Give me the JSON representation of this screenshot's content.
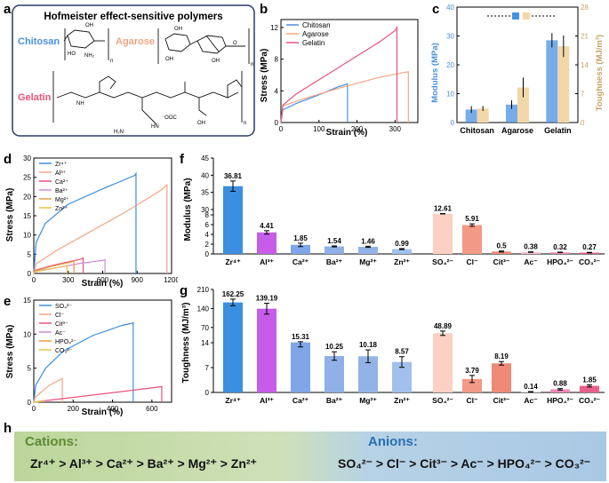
{
  "panel_letters": {
    "a": "a",
    "b": "b",
    "c": "c",
    "d": "d",
    "e": "e",
    "f": "f",
    "g": "g",
    "h": "h"
  },
  "colors": {
    "chitosan": "#4a90e2",
    "agarose": "#f4a582",
    "gelatin": "#e8537a",
    "zr": "#3b8fe0",
    "al": "#c65ce8",
    "ca": "#7fa6e8",
    "ba": "#8fb1e8",
    "mg": "#93b3e6",
    "zn": "#a2c0ec",
    "so4": "#fcd0c2",
    "cl": "#f29a86",
    "cit": "#ef8a78",
    "ac": "#f7c0d0",
    "hpo4": "#ee88b8",
    "co3": "#e8608a",
    "toughness": "#f2d7a8",
    "banner_left": "#bcd69a",
    "banner_right": "#a9c8e4",
    "cation_title": "#5e8a34",
    "anion_title": "#2a6fb4"
  },
  "panel_a": {
    "title": "Hofmeister effect-sensitive polymers",
    "chitosan": "Chitosan",
    "agarose": "Agarose",
    "gelatin": "Gelatin",
    "n": "n",
    "oh": "OH",
    "ho": "HO",
    "o": "O",
    "nh2": "NH₂",
    "nh": "NH",
    "hn": "HN",
    "h2n": "H₂N",
    "ooc": "⁻OOC"
  },
  "panel_h": {
    "cations_title": "Cations:",
    "anions_title": "Anions:",
    "cation_series": "Zr⁴⁺ > Al³⁺ > Ca²⁺ > Ba²⁺ > Mg²⁺ > Zn²⁺",
    "anion_series": "SO₄²⁻ > Cl⁻ > Cit³⁻ > Ac⁻ > HPO₄²⁻ > CO₃²⁻"
  },
  "chart_data": [
    {
      "id": "b",
      "type": "line",
      "xlabel": "Strain (%)",
      "ylabel": "Stress (MPa)",
      "xlim": [
        0,
        360
      ],
      "ylim": [
        0,
        13
      ],
      "xticks": [
        "0",
        "100",
        "200",
        "300"
      ],
      "yticks": [
        "0",
        "4",
        "8",
        "12"
      ],
      "legend_position": "top-left",
      "series": [
        {
          "name": "Chitosan",
          "color": "#4a90e2",
          "x": [
            0,
            5,
            40,
            100,
            150,
            170,
            175,
            175
          ],
          "y": [
            0,
            1.6,
            2.4,
            3.5,
            4.5,
            4.8,
            4.9,
            0
          ]
        },
        {
          "name": "Agarose",
          "color": "#f4a582",
          "x": [
            0,
            5,
            60,
            150,
            250,
            320,
            335,
            335
          ],
          "y": [
            0,
            2.1,
            3,
            4.3,
            5.6,
            6.3,
            6.4,
            0
          ]
        },
        {
          "name": "Gelatin",
          "color": "#e8537a",
          "x": [
            0,
            5,
            40,
            120,
            200,
            260,
            300,
            305,
            305
          ],
          "y": [
            0,
            2.2,
            3.6,
            6,
            8.4,
            10.2,
            11.6,
            12,
            0
          ]
        }
      ]
    },
    {
      "id": "c",
      "type": "bar",
      "categories": [
        "Chitosan",
        "Agarose",
        "Gelatin"
      ],
      "ylabel": "Modulus (MPa)",
      "y2label": "Toughness (MJ/m³)",
      "ylim": [
        0,
        40
      ],
      "y2lim": [
        0,
        28
      ],
      "yticks": [
        "0",
        "10",
        "20",
        "30",
        "40"
      ],
      "y2ticks": [
        "0",
        "7",
        "14",
        "21",
        "28"
      ],
      "series": [
        {
          "name": "Modulus",
          "axis": "left",
          "values": [
            4.5,
            6.2,
            28.5
          ],
          "errors": [
            1.2,
            1.5,
            2.5
          ]
        },
        {
          "name": "Toughness",
          "axis": "right",
          "values": [
            3.4,
            8.5,
            18.5
          ],
          "errors": [
            0.6,
            2.4,
            2.6
          ]
        }
      ]
    },
    {
      "id": "d",
      "type": "line",
      "xlabel": "Strain (%)",
      "ylabel": "Stress (MPa)",
      "xlim": [
        0,
        1200
      ],
      "ylim": [
        0,
        30
      ],
      "xticks": [
        "0",
        "300",
        "600",
        "900",
        "1200"
      ],
      "yticks": [
        "0",
        "5",
        "10",
        "15",
        "20",
        "25",
        "30"
      ],
      "legend_position": "top-left",
      "series": [
        {
          "name": "Zr⁴⁺",
          "color": "#3b8fe0",
          "x": [
            0,
            20,
            100,
            300,
            600,
            880,
            890,
            890
          ],
          "y": [
            0,
            8,
            13,
            18,
            22,
            25.5,
            26,
            0
          ]
        },
        {
          "name": "Al³⁺",
          "color": "#f4a582",
          "x": [
            0,
            20,
            200,
            500,
            800,
            1100,
            1160,
            1160
          ],
          "y": [
            0,
            2.5,
            6,
            11,
            16,
            21.5,
            23,
            0
          ]
        },
        {
          "name": "Ca²⁺",
          "color": "#e8537a",
          "x": [
            0,
            10,
            150,
            300,
            420,
            430,
            430
          ],
          "y": [
            0,
            0.8,
            2,
            3,
            3.8,
            4,
            0
          ]
        },
        {
          "name": "Ba²⁺",
          "color": "#d48bd8",
          "x": [
            0,
            10,
            200,
            400,
            600,
            620,
            620
          ],
          "y": [
            0,
            0.5,
            1.5,
            2.6,
            3.4,
            3.6,
            0
          ]
        },
        {
          "name": "Mg²⁺",
          "color": "#e8a046",
          "x": [
            0,
            10,
            150,
            330,
            350,
            350
          ],
          "y": [
            0,
            0.6,
            1.8,
            3,
            3.2,
            0
          ]
        },
        {
          "name": "Zn²⁺",
          "color": "#e8c24a",
          "x": [
            0,
            10,
            150,
            280,
            290,
            290
          ],
          "y": [
            0,
            0.4,
            1.2,
            2,
            2.1,
            0
          ]
        }
      ]
    },
    {
      "id": "e",
      "type": "line",
      "xlabel": "Strain (%)",
      "ylabel": "Stress (MPa)",
      "xlim": [
        0,
        700
      ],
      "ylim": [
        0,
        15
      ],
      "xticks": [
        "0",
        "200",
        "400",
        "600"
      ],
      "yticks": [
        "0",
        "5",
        "10",
        "15"
      ],
      "legend_position": "top-left",
      "series": [
        {
          "name": "SO₄²⁻",
          "color": "#3b8fe0",
          "x": [
            0,
            10,
            60,
            150,
            300,
            450,
            500,
            505,
            505
          ],
          "y": [
            0,
            2.5,
            5,
            7.5,
            9.8,
            11.3,
            11.6,
            11.7,
            0
          ]
        },
        {
          "name": "Cl⁻",
          "color": "#f4a582",
          "x": [
            0,
            10,
            80,
            140,
            145,
            145
          ],
          "y": [
            0,
            0.8,
            2.5,
            3.4,
            3.5,
            0
          ]
        },
        {
          "name": "Cit³⁻",
          "color": "#e8537a",
          "x": [
            0,
            20,
            200,
            400,
            600,
            650,
            650
          ],
          "y": [
            0,
            0.1,
            0.7,
            1.4,
            2.1,
            2.3,
            0
          ]
        },
        {
          "name": "Ac⁻",
          "color": "#d48bd8",
          "x": [
            0,
            30,
            60,
            60
          ],
          "y": [
            0,
            0.1,
            0.2,
            0
          ]
        },
        {
          "name": "HPO₄²⁻",
          "color": "#e8a046",
          "x": [
            0,
            30,
            50,
            50
          ],
          "y": [
            0,
            0.1,
            0.15,
            0
          ]
        },
        {
          "name": "CO₃²⁻",
          "color": "#e8c24a",
          "x": [
            0,
            30,
            50,
            50
          ],
          "y": [
            0,
            0.1,
            0.15,
            0
          ]
        }
      ]
    },
    {
      "id": "f",
      "type": "bar",
      "ylabel": "Modulus (MPa)",
      "categories": [
        "Zr⁴⁺",
        "Al³⁺",
        "Ca²⁺",
        "Ba²⁺",
        "Mg²⁺",
        "Zn²⁺",
        "SO₄²⁻",
        "Cl⁻",
        "Cit³⁻",
        "Ac⁻",
        "HPO₄²⁻",
        "CO₃²⁻"
      ],
      "values": [
        36.81,
        4.41,
        1.85,
        1.54,
        1.46,
        0.99,
        12.61,
        5.91,
        0.5,
        0.38,
        0.32,
        0.27
      ],
      "labels": [
        "36.81",
        "4.41",
        "1.85",
        "1.54",
        "1.46",
        "0.99",
        "12.61",
        "5.91",
        "0.5",
        "0.38",
        "0.32",
        "0.27"
      ],
      "errors": [
        1.5,
        0.35,
        0.35,
        0.1,
        0.12,
        0.1,
        0.8,
        0.25,
        0.1,
        0.05,
        0.05,
        0.05
      ],
      "yticks": [
        "0",
        "2",
        "4",
        "6",
        "8",
        "30",
        "35",
        "40",
        "45"
      ],
      "broken_axis": true
    },
    {
      "id": "g",
      "type": "bar",
      "ylabel": "Toughness (MJ/m³)",
      "categories": [
        "Zr⁴⁺",
        "Al³⁺",
        "Ca²⁺",
        "Ba²⁺",
        "Mg²⁺",
        "Zn²⁺",
        "SO₄²⁻",
        "Cl⁻",
        "Cit³⁻",
        "Ac⁻",
        "HPO₄²⁻",
        "CO₃²⁻"
      ],
      "values": [
        162.25,
        139.19,
        15.31,
        10.25,
        10.18,
        8.57,
        48.89,
        3.79,
        8.19,
        0.14,
        0.88,
        1.85
      ],
      "labels": [
        "162.25",
        "139.19",
        "15.31",
        "10.25",
        "10.18",
        "8.57",
        "48.89",
        "3.79",
        "8.19",
        "0.14",
        "0.88",
        "1.85"
      ],
      "errors": [
        12,
        20,
        2.5,
        1.2,
        1.8,
        1.5,
        8,
        1,
        0.5,
        0.1,
        0.2,
        0.3
      ],
      "yticks": [
        "0",
        "7",
        "14",
        "70",
        "140",
        "210"
      ],
      "broken_axis": true
    }
  ]
}
